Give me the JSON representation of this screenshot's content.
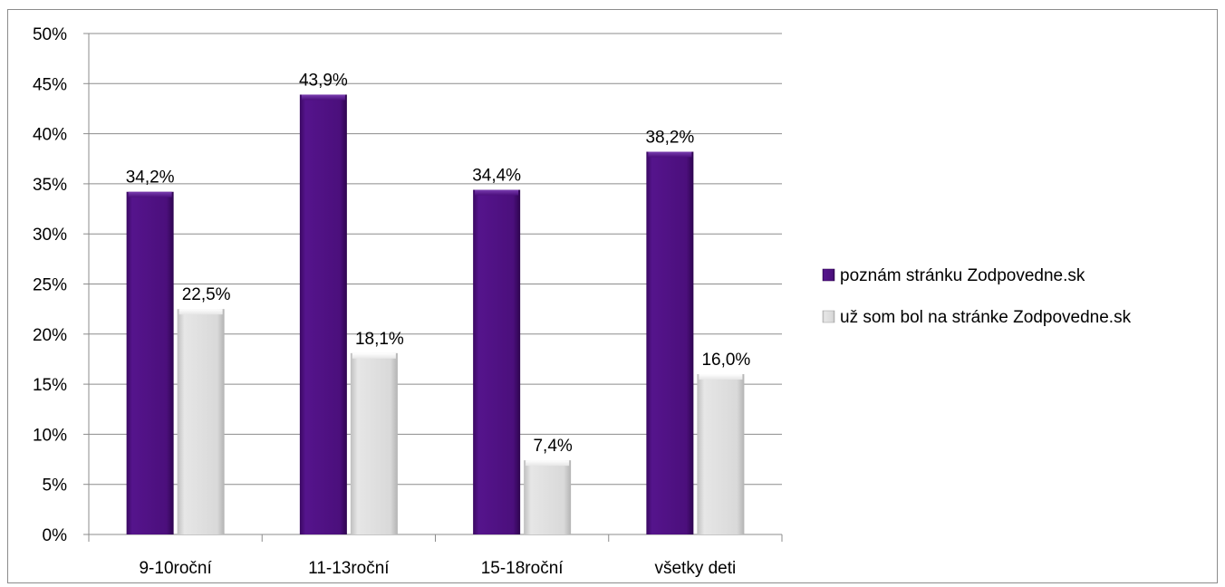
{
  "chart_data": {
    "type": "bar",
    "categories": [
      "9-10roční",
      "11-13roční",
      "15-18roční",
      "všetky deti"
    ],
    "series": [
      {
        "name": "poznám stránku Zodpovedne.sk",
        "values": [
          34.2,
          43.9,
          34.4,
          38.2
        ],
        "labels": [
          "34,2%",
          "43,9%",
          "34,4%",
          "38,2%"
        ],
        "color": "#4b0f7c"
      },
      {
        "name": "už som bol na stránke Zodpovedne.sk",
        "values": [
          22.5,
          18.1,
          7.4,
          16.0
        ],
        "labels": [
          "22,5%",
          "18,1%",
          "7,4%",
          "16,0%"
        ],
        "color": "#d9d9d9"
      }
    ],
    "ylim": [
      0,
      50
    ],
    "yticks": [
      "0%",
      "5%",
      "10%",
      "15%",
      "20%",
      "25%",
      "30%",
      "35%",
      "40%",
      "45%",
      "50%"
    ],
    "grid": true,
    "legend_position": "right"
  }
}
